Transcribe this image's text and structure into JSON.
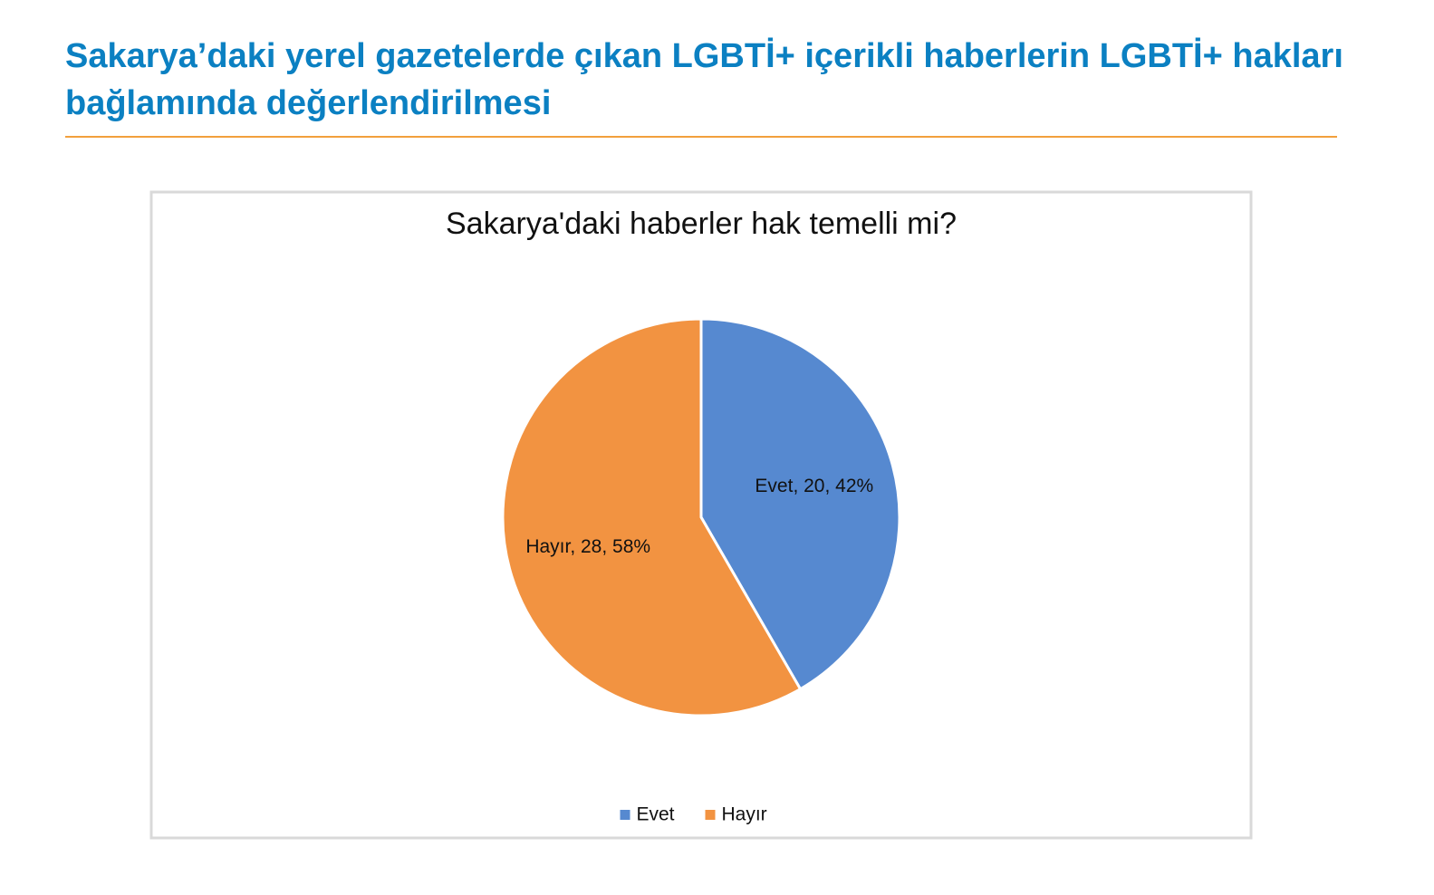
{
  "header": {
    "title": "Sakarya’daki yerel gazetelerde çıkan LGBTİ+ içerikli haberlerin LGBTİ+ hakları bağlamında değerlendirilmesi"
  },
  "chart_data": {
    "type": "pie",
    "title": "Sakarya'daki haberler hak temelli mi?",
    "categories": [
      "Evet",
      "Hayır"
    ],
    "values": [
      20,
      28
    ],
    "value_labels": [
      "Evet, 20, 42%",
      "Hayır, 28, 58%"
    ],
    "colors": [
      "#5689d0",
      "#f29341"
    ],
    "legend": "bottom"
  }
}
